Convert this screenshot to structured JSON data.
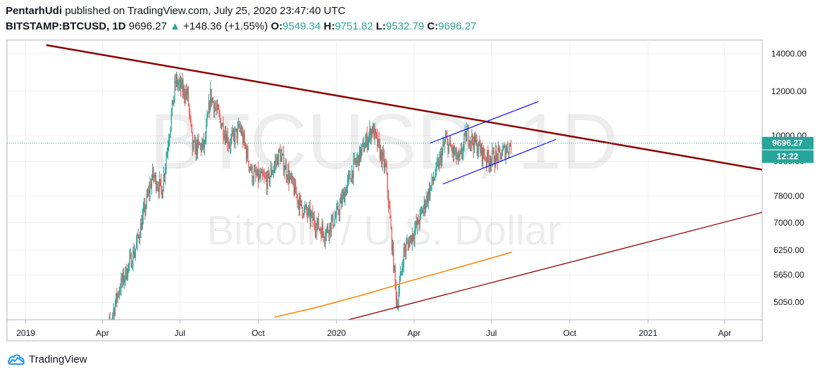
{
  "header": {
    "author": "PentarhUdi",
    "published": "published on TradingView.com, July 25, 2020 23:47:40 UTC",
    "symbol": "BITSTAMP:BTCUSD, 1D",
    "last": "9696.27",
    "arrow": "▲",
    "change": "+148.36 (+1.55%)",
    "o_label": "O:",
    "o": "9549.34",
    "h_label": "H:",
    "h": "9751.82",
    "l_label": "L:",
    "l": "9532.79",
    "c_label": "C:",
    "c": "9696.27"
  },
  "watermark": {
    "line1": "BTCUSD, 1D",
    "line2": "Bitcoin / U.S. Dollar"
  },
  "footer": {
    "brand": "TradingView",
    "icon": "tradingview-cloud-icon"
  },
  "colors": {
    "up": "#26a69a",
    "down": "#ef5350",
    "trend": "#8b0000",
    "channel": "#0000ff",
    "ma": "#ff7f00",
    "price_tag": "#26a69a"
  },
  "chart_data": {
    "type": "candlestick",
    "x_range": [
      "2018-12-10",
      "2021-05-15"
    ],
    "y_range": [
      4700,
      14800
    ],
    "y_scale": "log",
    "y_ticks": [
      "14000.00",
      "12000.00",
      "10000.00",
      "9000.00",
      "7800.00",
      "7000.00",
      "6250.00",
      "5650.00",
      "5050.00"
    ],
    "x_ticks": [
      {
        "label": "2019",
        "date": "2019-01-01"
      },
      {
        "label": "Apr",
        "date": "2019-04-01"
      },
      {
        "label": "Jul",
        "date": "2019-07-01"
      },
      {
        "label": "Oct",
        "date": "2019-10-01"
      },
      {
        "label": "2020",
        "date": "2020-01-01"
      },
      {
        "label": "Apr",
        "date": "2020-04-01"
      },
      {
        "label": "Jul",
        "date": "2020-07-01"
      },
      {
        "label": "Oct",
        "date": "2020-10-01"
      },
      {
        "label": "2021",
        "date": "2021-01-01"
      },
      {
        "label": "Apr",
        "date": "2021-04-01"
      }
    ],
    "price_path": [
      [
        "2019-04-01",
        4100
      ],
      [
        "2019-04-20",
        5300
      ],
      [
        "2019-05-10",
        6300
      ],
      [
        "2019-05-30",
        8500
      ],
      [
        "2019-06-10",
        8000
      ],
      [
        "2019-06-26",
        12500
      ],
      [
        "2019-07-10",
        11800
      ],
      [
        "2019-07-16",
        9500
      ],
      [
        "2019-07-30",
        9600
      ],
      [
        "2019-08-06",
        11800
      ],
      [
        "2019-08-28",
        9700
      ],
      [
        "2019-09-10",
        10300
      ],
      [
        "2019-09-24",
        8500
      ],
      [
        "2019-10-12",
        8300
      ],
      [
        "2019-10-26",
        9300
      ],
      [
        "2019-11-20",
        7500
      ],
      [
        "2019-12-18",
        6700
      ],
      [
        "2020-01-01",
        7200
      ],
      [
        "2020-01-20",
        8700
      ],
      [
        "2020-02-12",
        10300
      ],
      [
        "2020-02-28",
        8700
      ],
      [
        "2020-03-12",
        5000
      ],
      [
        "2020-03-20",
        6200
      ],
      [
        "2020-04-06",
        7000
      ],
      [
        "2020-04-29",
        8800
      ],
      [
        "2020-05-08",
        9800
      ],
      [
        "2020-05-24",
        9000
      ],
      [
        "2020-06-02",
        10100
      ],
      [
        "2020-06-26",
        9100
      ],
      [
        "2020-07-10",
        9200
      ],
      [
        "2020-07-25",
        9696
      ]
    ],
    "last_price": {
      "value": 9696.27,
      "label": "9696.27",
      "timer": "12:22"
    },
    "drawings": {
      "upper_trendline": [
        [
          "2019-01-25",
          14500
        ],
        [
          "2021-05-15",
          8700
        ]
      ],
      "lower_trendline": [
        [
          "2020-01-15",
          4700
        ],
        [
          "2021-05-15",
          7300
        ]
      ],
      "channel_upper": [
        [
          "2020-04-20",
          9700
        ],
        [
          "2020-08-25",
          11500
        ]
      ],
      "channel_lower": [
        [
          "2020-05-05",
          8200
        ],
        [
          "2020-09-15",
          9850
        ]
      ],
      "moving_average": [
        [
          "2019-10-20",
          4750
        ],
        [
          "2019-12-10",
          4950
        ],
        [
          "2020-02-10",
          5250
        ],
        [
          "2020-03-25",
          5500
        ],
        [
          "2020-05-10",
          5750
        ],
        [
          "2020-07-25",
          6200
        ]
      ]
    }
  }
}
